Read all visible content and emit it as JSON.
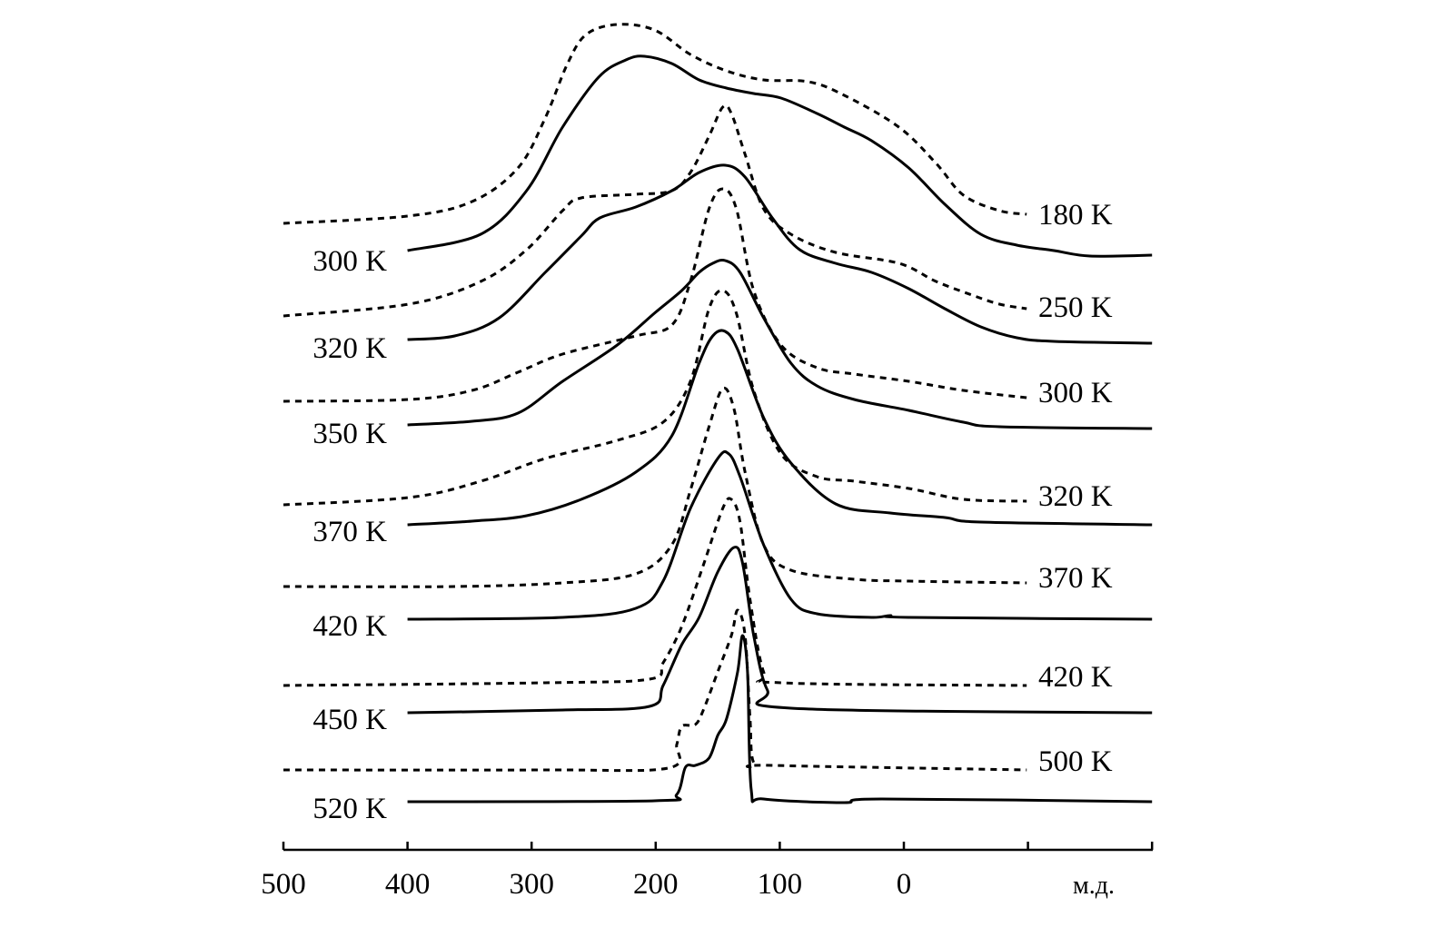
{
  "chart_data": {
    "type": "line",
    "title": "",
    "xlabel": "м.д.",
    "ylabel": "",
    "xlim": [
      500,
      -200
    ],
    "x_ticks": [
      500,
      400,
      300,
      200,
      100,
      0,
      -100,
      -200
    ],
    "x_tick_labels": [
      "500",
      "400",
      "300",
      "200",
      "100",
      "0",
      "",
      ""
    ],
    "y_units": "arbitrary intensity, relative to each spectrum's baseline",
    "grid": false,
    "series": [
      {
        "name": "180 K",
        "style": "dashed",
        "label_side": "right",
        "points": [
          [
            500,
            0
          ],
          [
            400,
            0.08
          ],
          [
            348,
            0.24
          ],
          [
            311,
            0.61
          ],
          [
            289,
            1.16
          ],
          [
            271,
            1.76
          ],
          [
            256,
            2.08
          ],
          [
            231,
            2.19
          ],
          [
            201,
            2.13
          ],
          [
            172,
            1.86
          ],
          [
            143,
            1.68
          ],
          [
            113,
            1.58
          ],
          [
            77,
            1.56
          ],
          [
            48,
            1.41
          ],
          [
            4,
            1.06
          ],
          [
            -26,
            0.66
          ],
          [
            -48,
            0.31
          ],
          [
            -77,
            0.14
          ],
          [
            -99,
            0.1
          ]
        ]
      },
      {
        "name": "300 K",
        "style": "solid",
        "label_side": "left",
        "points": [
          [
            400,
            0.04
          ],
          [
            341,
            0.22
          ],
          [
            304,
            0.7
          ],
          [
            275,
            1.4
          ],
          [
            246,
            1.95
          ],
          [
            224,
            2.14
          ],
          [
            209,
            2.18
          ],
          [
            187,
            2.1
          ],
          [
            165,
            1.92
          ],
          [
            143,
            1.83
          ],
          [
            121,
            1.77
          ],
          [
            99,
            1.72
          ],
          [
            70,
            1.55
          ],
          [
            48,
            1.4
          ],
          [
            26,
            1.25
          ],
          [
            -4,
            0.95
          ],
          [
            -33,
            0.55
          ],
          [
            -62,
            0.22
          ],
          [
            -91,
            0.1
          ],
          [
            -121,
            0.04
          ],
          [
            -150,
            -0.02
          ],
          [
            -200,
            -0.01
          ]
        ]
      },
      {
        "name": "250 K",
        "style": "dashed",
        "label_side": "right",
        "points": [
          [
            500,
            0
          ],
          [
            399,
            0.13
          ],
          [
            341,
            0.38
          ],
          [
            304,
            0.73
          ],
          [
            275,
            1.16
          ],
          [
            260,
            1.3
          ],
          [
            216,
            1.34
          ],
          [
            187,
            1.38
          ],
          [
            172,
            1.58
          ],
          [
            157,
            1.98
          ],
          [
            146,
            2.3
          ],
          [
            139,
            2.23
          ],
          [
            128,
            1.78
          ],
          [
            113,
            1.18
          ],
          [
            91,
            0.9
          ],
          [
            55,
            0.7
          ],
          [
            4,
            0.58
          ],
          [
            -26,
            0.38
          ],
          [
            -55,
            0.23
          ],
          [
            -77,
            0.13
          ],
          [
            -99,
            0.08
          ]
        ]
      },
      {
        "name": "320 K",
        "style": "solid",
        "label_side": "left",
        "points": [
          [
            400,
            0.02
          ],
          [
            362,
            0.06
          ],
          [
            326,
            0.26
          ],
          [
            289,
            0.76
          ],
          [
            260,
            1.16
          ],
          [
            245,
            1.36
          ],
          [
            216,
            1.48
          ],
          [
            187,
            1.66
          ],
          [
            165,
            1.86
          ],
          [
            144,
            1.94
          ],
          [
            128,
            1.81
          ],
          [
            106,
            1.36
          ],
          [
            84,
            1.01
          ],
          [
            55,
            0.86
          ],
          [
            26,
            0.76
          ],
          [
            -4,
            0.58
          ],
          [
            -33,
            0.36
          ],
          [
            -62,
            0.16
          ],
          [
            -91,
            0.04
          ],
          [
            -121,
            0
          ],
          [
            -200,
            -0.02
          ]
        ]
      },
      {
        "name": "300 K",
        "style": "dashed",
        "label_side": "right",
        "points": [
          [
            500,
            0
          ],
          [
            399,
            0.02
          ],
          [
            348,
            0.12
          ],
          [
            311,
            0.32
          ],
          [
            275,
            0.52
          ],
          [
            216,
            0.72
          ],
          [
            187,
            0.84
          ],
          [
            172,
            1.32
          ],
          [
            157,
            2.12
          ],
          [
            146,
            2.34
          ],
          [
            135,
            2.12
          ],
          [
            121,
            1.22
          ],
          [
            99,
            0.62
          ],
          [
            70,
            0.37
          ],
          [
            40,
            0.3
          ],
          [
            -4,
            0.22
          ],
          [
            -48,
            0.12
          ],
          [
            -99,
            0.04
          ]
        ]
      },
      {
        "name": "350 K",
        "style": "solid",
        "label_side": "left",
        "points": [
          [
            400,
            0.02
          ],
          [
            348,
            0.06
          ],
          [
            311,
            0.15
          ],
          [
            275,
            0.5
          ],
          [
            231,
            0.9
          ],
          [
            201,
            1.25
          ],
          [
            179,
            1.5
          ],
          [
            165,
            1.7
          ],
          [
            154,
            1.8
          ],
          [
            144,
            1.83
          ],
          [
            132,
            1.7
          ],
          [
            113,
            1.2
          ],
          [
            91,
            0.7
          ],
          [
            70,
            0.45
          ],
          [
            40,
            0.3
          ],
          [
            -4,
            0.18
          ],
          [
            -48,
            0.05
          ],
          [
            -77,
            0
          ],
          [
            -200,
            -0.02
          ]
        ]
      },
      {
        "name": "320 K",
        "style": "dashed",
        "label_side": "right",
        "points": [
          [
            500,
            0
          ],
          [
            399,
            0.08
          ],
          [
            341,
            0.26
          ],
          [
            289,
            0.51
          ],
          [
            231,
            0.71
          ],
          [
            194,
            0.91
          ],
          [
            172,
            1.36
          ],
          [
            157,
            2.16
          ],
          [
            146,
            2.36
          ],
          [
            135,
            2.11
          ],
          [
            121,
            1.26
          ],
          [
            99,
            0.56
          ],
          [
            70,
            0.31
          ],
          [
            40,
            0.26
          ],
          [
            -4,
            0.18
          ],
          [
            -48,
            0.06
          ],
          [
            -99,
            0.04
          ]
        ]
      },
      {
        "name": "370 K",
        "style": "solid",
        "label_side": "left",
        "points": [
          [
            400,
            0
          ],
          [
            348,
            0.04
          ],
          [
            304,
            0.1
          ],
          [
            260,
            0.28
          ],
          [
            216,
            0.58
          ],
          [
            187,
            0.98
          ],
          [
            165,
            1.78
          ],
          [
            154,
            2.08
          ],
          [
            144,
            2.13
          ],
          [
            134,
            1.93
          ],
          [
            113,
            1.18
          ],
          [
            91,
            0.68
          ],
          [
            55,
            0.23
          ],
          [
            11,
            0.13
          ],
          [
            -33,
            0.08
          ],
          [
            -62,
            0.03
          ],
          [
            -200,
            0
          ]
        ]
      },
      {
        "name": "370 K",
        "style": "dashed",
        "label_side": "right",
        "points": [
          [
            500,
            0
          ],
          [
            362,
            0
          ],
          [
            275,
            0.04
          ],
          [
            216,
            0.14
          ],
          [
            187,
            0.46
          ],
          [
            172,
            1.06
          ],
          [
            157,
            1.76
          ],
          [
            146,
            2.18
          ],
          [
            137,
            1.96
          ],
          [
            128,
            1.26
          ],
          [
            113,
            0.46
          ],
          [
            91,
            0.18
          ],
          [
            40,
            0.08
          ],
          [
            -4,
            0.06
          ],
          [
            -99,
            0.04
          ]
        ]
      },
      {
        "name": "420 K",
        "style": "solid",
        "label_side": "left",
        "points": [
          [
            400,
            0
          ],
          [
            275,
            0.02
          ],
          [
            216,
            0.12
          ],
          [
            194,
            0.42
          ],
          [
            172,
            1.22
          ],
          [
            150,
            1.77
          ],
          [
            141,
            1.82
          ],
          [
            132,
            1.57
          ],
          [
            113,
            0.82
          ],
          [
            91,
            0.22
          ],
          [
            70,
            0.06
          ],
          [
            26,
            0.02
          ],
          [
            11,
            0.04
          ],
          [
            -4,
            0.02
          ],
          [
            -200,
            0
          ]
        ]
      },
      {
        "name": "420 K",
        "style": "dashed",
        "label_side": "right",
        "points": [
          [
            500,
            0
          ],
          [
            289,
            0.03
          ],
          [
            205,
            0.07
          ],
          [
            194,
            0.25
          ],
          [
            179,
            0.65
          ],
          [
            161,
            1.35
          ],
          [
            146,
            1.95
          ],
          [
            139,
            2.05
          ],
          [
            132,
            1.8
          ],
          [
            124,
            0.95
          ],
          [
            113,
            0.15
          ],
          [
            99,
            0.03
          ],
          [
            -99,
            0
          ]
        ]
      },
      {
        "name": "450 K",
        "style": "solid",
        "label_side": "left",
        "points": [
          [
            400,
            0
          ],
          [
            275,
            0.03
          ],
          [
            205,
            0.07
          ],
          [
            194,
            0.3
          ],
          [
            179,
            0.75
          ],
          [
            165,
            1.05
          ],
          [
            150,
            1.55
          ],
          [
            137,
            1.82
          ],
          [
            130,
            1.65
          ],
          [
            121,
            0.85
          ],
          [
            110,
            0.25
          ],
          [
            91,
            0.05
          ],
          [
            -200,
            0
          ]
        ]
      },
      {
        "name": "500 K",
        "style": "dashed",
        "label_side": "right",
        "points": [
          [
            500,
            0
          ],
          [
            289,
            0
          ],
          [
            190,
            0.02
          ],
          [
            183,
            0.28
          ],
          [
            179,
            0.48
          ],
          [
            168,
            0.5
          ],
          [
            161,
            0.68
          ],
          [
            150,
            1.08
          ],
          [
            139,
            1.48
          ],
          [
            134,
            1.76
          ],
          [
            128,
            1.48
          ],
          [
            124,
            0.58
          ],
          [
            121,
            0.08
          ],
          [
            106,
            0.05
          ],
          [
            -99,
            0
          ]
        ]
      },
      {
        "name": "520 K",
        "style": "solid",
        "label_side": "left",
        "points": [
          [
            400,
            0
          ],
          [
            201,
            0.01
          ],
          [
            183,
            0.08
          ],
          [
            176,
            0.38
          ],
          [
            168,
            0.4
          ],
          [
            157,
            0.48
          ],
          [
            150,
            0.73
          ],
          [
            143,
            0.91
          ],
          [
            134,
            1.43
          ],
          [
            130,
            1.83
          ],
          [
            126,
            1.43
          ],
          [
            123,
            0.13
          ],
          [
            113,
            0.03
          ],
          [
            48,
            -0.01
          ],
          [
            18,
            0.03
          ],
          [
            -200,
            0
          ]
        ]
      }
    ]
  }
}
